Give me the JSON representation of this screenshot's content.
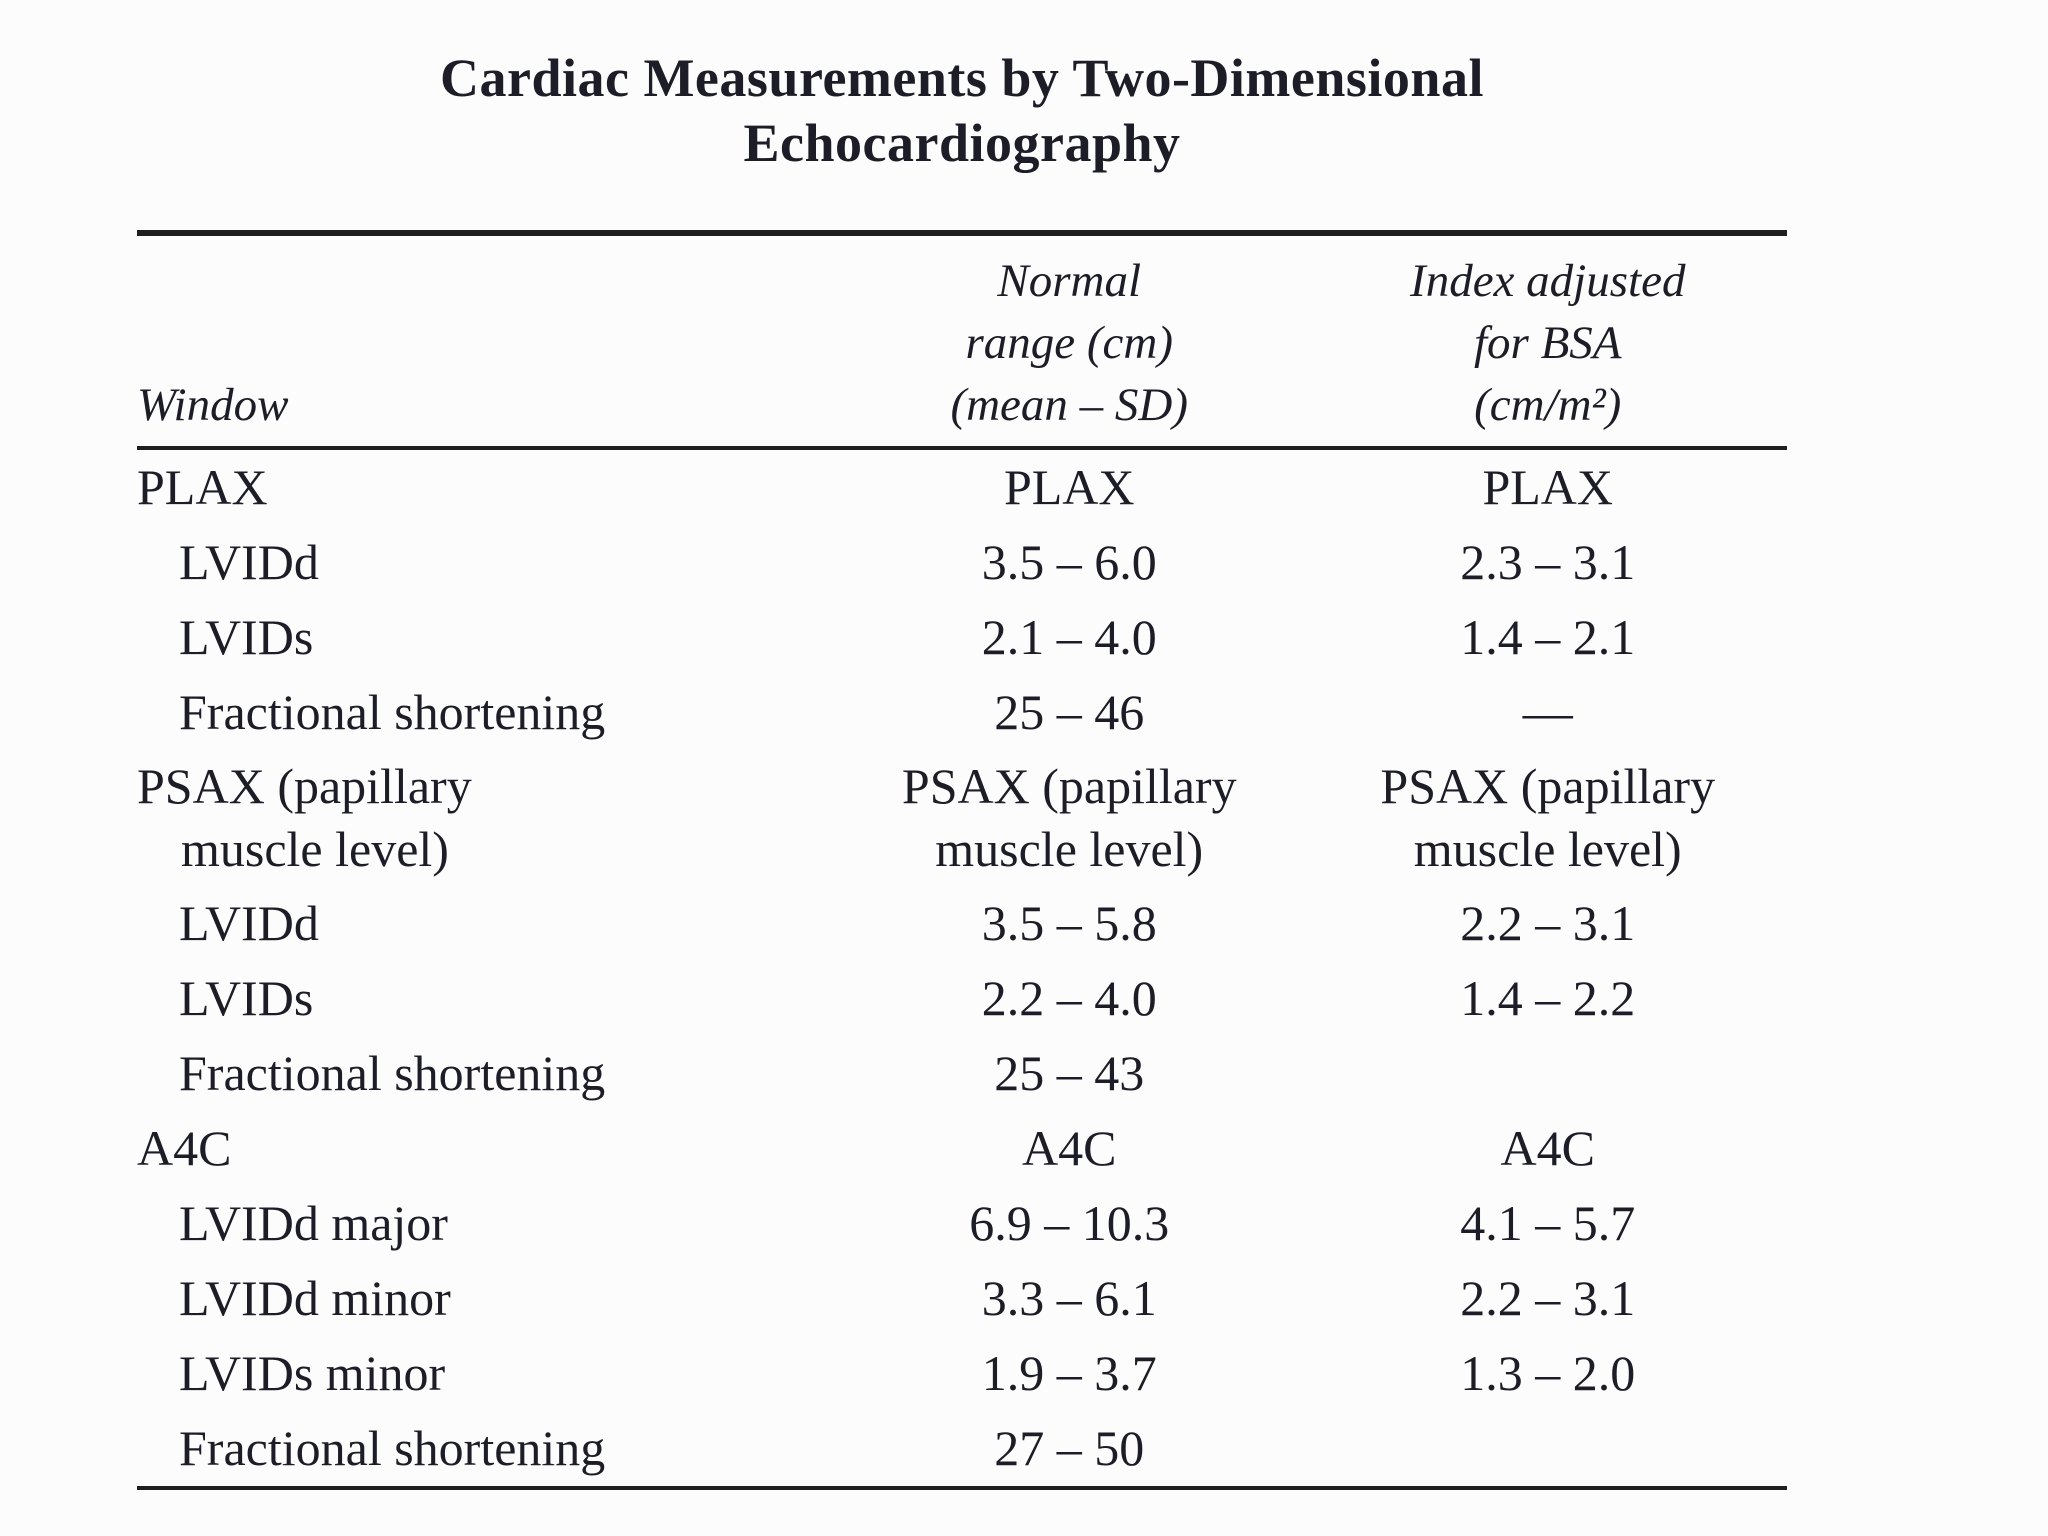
{
  "document": {
    "title": {
      "line1": "Cardiac Measurements by Two-Dimensional",
      "line2": "Echocardiography"
    },
    "header": {
      "col1": "Window",
      "col2": [
        "Normal",
        "range (cm)",
        "(mean – SD)"
      ],
      "col3": [
        "Index adjusted",
        "for BSA",
        "(cm/m²)"
      ]
    },
    "rows": [
      {
        "kind": "section",
        "w": "PLAX",
        "n": "PLAX",
        "i": "PLAX"
      },
      {
        "kind": "measure",
        "w": "LVIDd",
        "n": "3.5 – 6.0",
        "i": "2.3 – 3.1"
      },
      {
        "kind": "measure",
        "w": "LVIDs",
        "n": "2.1 – 4.0",
        "i": "1.4 – 2.1"
      },
      {
        "kind": "measure",
        "w": "Fractional shortening",
        "n": "25 – 46",
        "i": "—"
      },
      {
        "kind": "section",
        "w": "PSAX (papillary",
        "w2": "muscle level)",
        "n": "PSAX (papillary",
        "n2": "muscle level)",
        "i": "PSAX (papillary",
        "i2": "muscle level)"
      },
      {
        "kind": "measure",
        "w": "LVIDd",
        "n": "3.5 – 5.8",
        "i": "2.2 – 3.1"
      },
      {
        "kind": "measure",
        "w": "LVIDs",
        "n": "2.2 – 4.0",
        "i": "1.4 – 2.2"
      },
      {
        "kind": "measure",
        "w": "Fractional shortening",
        "n": "25 – 43",
        "i": ""
      },
      {
        "kind": "section",
        "w": "A4C",
        "n": "A4C",
        "i": "A4C"
      },
      {
        "kind": "measure",
        "w": "LVIDd major",
        "n": "6.9 – 10.3",
        "i": "4.1 – 5.7"
      },
      {
        "kind": "measure",
        "w": "LVIDd minor",
        "n": "3.3 – 6.1",
        "i": "2.2 – 3.1"
      },
      {
        "kind": "measure",
        "w": "LVIDs minor",
        "n": "1.9 – 3.7",
        "i": "1.3 – 2.0"
      },
      {
        "kind": "measure",
        "w": "Fractional shortening",
        "n": "27 – 50",
        "i": ""
      }
    ],
    "colors": {
      "background": "#fcfcfc",
      "text": "#1d1d27",
      "rule": "#1f1f1f"
    }
  }
}
